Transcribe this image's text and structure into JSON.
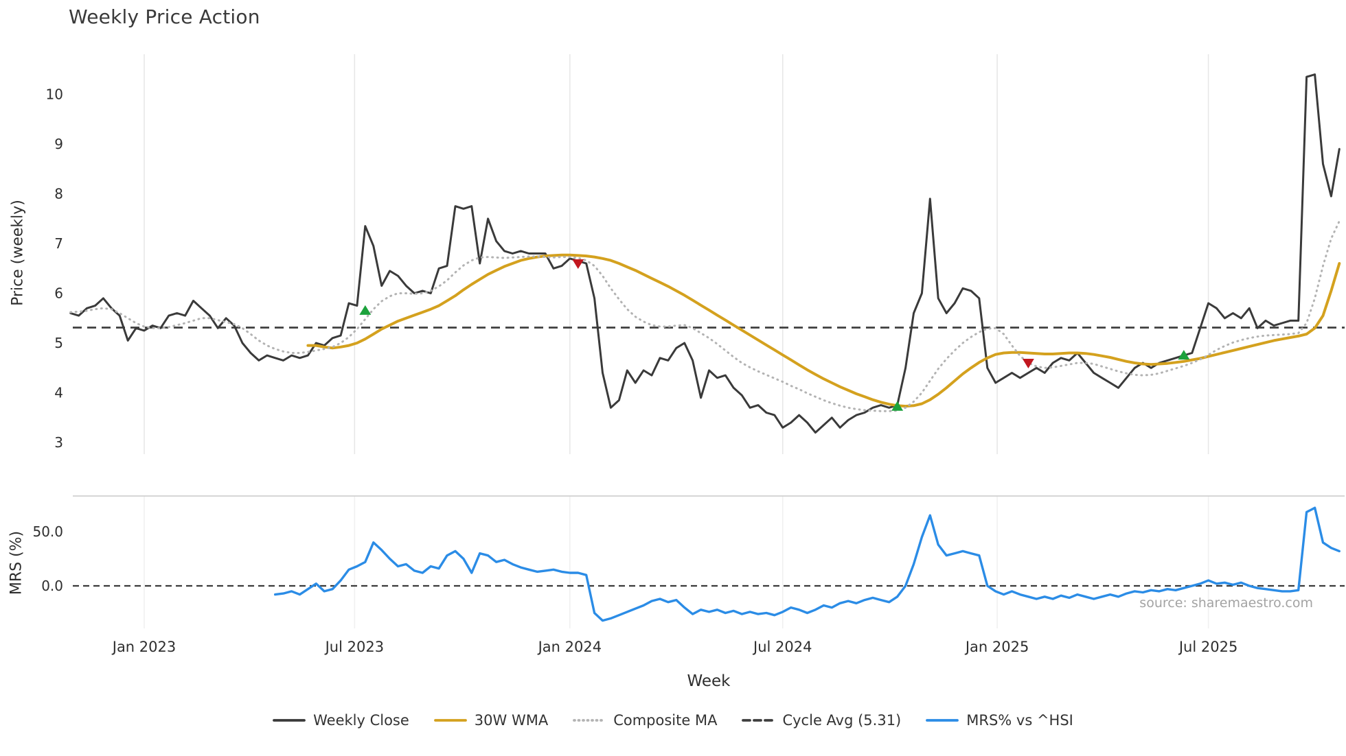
{
  "chart_data": {
    "type": "line",
    "title": "Weekly Price Action",
    "xlabel": "Week",
    "source": "source: sharemaestro.com",
    "grid": "vertical-only",
    "panels": [
      {
        "name": "price",
        "ylabel": "Price (weekly)",
        "ylim": [
          2.8,
          10.8
        ],
        "yticks": [
          {
            "v": 3,
            "label": "3"
          },
          {
            "v": 4,
            "label": "4"
          },
          {
            "v": 5,
            "label": "5"
          },
          {
            "v": 6,
            "label": "6"
          },
          {
            "v": 7,
            "label": "7"
          },
          {
            "v": 8,
            "label": "8"
          },
          {
            "v": 9,
            "label": "9"
          },
          {
            "v": 10,
            "label": "10"
          }
        ]
      },
      {
        "name": "mrs",
        "ylabel": "MRS (%)",
        "ylim": [
          -38,
          82
        ],
        "yticks": [
          {
            "v": 50,
            "label": "50.0"
          },
          {
            "v": 0,
            "label": "0.0"
          }
        ]
      }
    ],
    "x_axis": {
      "unit": "week_index",
      "n_weeks": 156,
      "tick_labels": [
        "Jan 2023",
        "Jul 2023",
        "Jan 2024",
        "Jul 2024",
        "Jan 2025",
        "Jul 2025"
      ],
      "tick_idx": [
        9,
        34.7,
        61,
        87,
        113.2,
        139
      ]
    },
    "cycle_avg": {
      "value": 5.31,
      "label": "Cycle Avg (5.31)",
      "color": "#3f3f3f",
      "style": "dashed"
    },
    "series": [
      {
        "name": "Weekly Close",
        "panel": "price",
        "color": "#3a3a3a",
        "style": "solid",
        "width": 3.0,
        "values": [
          5.6,
          5.55,
          5.7,
          5.75,
          5.9,
          5.7,
          5.55,
          5.05,
          5.3,
          5.25,
          5.35,
          5.3,
          5.55,
          5.6,
          5.55,
          5.85,
          5.7,
          5.55,
          5.3,
          5.5,
          5.35,
          5.0,
          4.8,
          4.65,
          4.75,
          4.7,
          4.65,
          4.75,
          4.7,
          4.75,
          5.0,
          4.95,
          5.1,
          5.15,
          5.8,
          5.75,
          7.35,
          6.95,
          6.15,
          6.45,
          6.35,
          6.15,
          6.0,
          6.05,
          6.0,
          6.5,
          6.55,
          7.75,
          7.7,
          7.75,
          6.6,
          7.5,
          7.05,
          6.85,
          6.8,
          6.85,
          6.8,
          6.8,
          6.8,
          6.5,
          6.55,
          6.7,
          6.65,
          6.6,
          5.9,
          4.4,
          3.7,
          3.85,
          4.45,
          4.2,
          4.45,
          4.35,
          4.7,
          4.65,
          4.9,
          5.0,
          4.65,
          3.9,
          4.45,
          4.3,
          4.35,
          4.1,
          3.95,
          3.7,
          3.75,
          3.6,
          3.55,
          3.3,
          3.4,
          3.55,
          3.4,
          3.2,
          3.35,
          3.5,
          3.3,
          3.45,
          3.55,
          3.6,
          3.7,
          3.75,
          3.7,
          3.75,
          4.5,
          5.6,
          6.0,
          7.9,
          5.9,
          5.6,
          5.8,
          6.1,
          6.05,
          5.9,
          4.5,
          4.2,
          4.3,
          4.4,
          4.3,
          4.4,
          4.5,
          4.4,
          4.6,
          4.7,
          4.65,
          4.8,
          4.6,
          4.4,
          4.3,
          4.2,
          4.1,
          4.3,
          4.5,
          4.6,
          4.5,
          4.6,
          4.65,
          4.7,
          4.75,
          4.8,
          5.3,
          5.8,
          5.7,
          5.5,
          5.6,
          5.5,
          5.7,
          5.3,
          5.45,
          5.35,
          5.4,
          5.45,
          5.45,
          10.35,
          10.4,
          8.6,
          7.95,
          8.9
        ]
      },
      {
        "name": "30W WMA",
        "panel": "price",
        "color": "#d4a11e",
        "style": "solid",
        "width": 4.0,
        "values": [
          null,
          null,
          null,
          null,
          null,
          null,
          null,
          null,
          null,
          null,
          null,
          null,
          null,
          null,
          null,
          null,
          null,
          null,
          null,
          null,
          null,
          null,
          null,
          null,
          null,
          null,
          null,
          null,
          null,
          4.95,
          4.95,
          4.92,
          4.9,
          4.92,
          4.95,
          5.0,
          5.08,
          5.18,
          5.28,
          5.36,
          5.44,
          5.5,
          5.56,
          5.62,
          5.68,
          5.75,
          5.85,
          5.95,
          6.07,
          6.18,
          6.28,
          6.38,
          6.46,
          6.54,
          6.6,
          6.66,
          6.7,
          6.73,
          6.75,
          6.76,
          6.77,
          6.77,
          6.76,
          6.75,
          6.73,
          6.7,
          6.66,
          6.6,
          6.53,
          6.46,
          6.38,
          6.3,
          6.22,
          6.14,
          6.05,
          5.96,
          5.86,
          5.76,
          5.66,
          5.56,
          5.46,
          5.36,
          5.26,
          5.16,
          5.06,
          4.96,
          4.86,
          4.76,
          4.66,
          4.56,
          4.46,
          4.37,
          4.28,
          4.2,
          4.12,
          4.05,
          3.98,
          3.92,
          3.86,
          3.81,
          3.77,
          3.74,
          3.73,
          3.74,
          3.78,
          3.86,
          3.97,
          4.1,
          4.24,
          4.38,
          4.5,
          4.61,
          4.7,
          4.77,
          4.8,
          4.81,
          4.81,
          4.8,
          4.79,
          4.78,
          4.78,
          4.79,
          4.8,
          4.8,
          4.79,
          4.77,
          4.74,
          4.71,
          4.67,
          4.63,
          4.6,
          4.58,
          4.57,
          4.58,
          4.59,
          4.61,
          4.63,
          4.66,
          4.69,
          4.73,
          4.77,
          4.81,
          4.85,
          4.89,
          4.93,
          4.97,
          5.01,
          5.05,
          5.08,
          5.11,
          5.14,
          5.18,
          5.3,
          5.55,
          6.05,
          6.6
        ]
      },
      {
        "name": "Composite MA",
        "panel": "price",
        "color": "#b3b3b3",
        "style": "dotted",
        "width": 3.0,
        "values": [
          5.62,
          5.63,
          5.65,
          5.68,
          5.7,
          5.68,
          5.6,
          5.5,
          5.4,
          5.33,
          5.3,
          5.3,
          5.32,
          5.36,
          5.4,
          5.45,
          5.5,
          5.5,
          5.46,
          5.42,
          5.38,
          5.3,
          5.18,
          5.05,
          4.95,
          4.88,
          4.83,
          4.8,
          4.8,
          4.82,
          4.85,
          4.88,
          4.92,
          5.0,
          5.12,
          5.28,
          5.48,
          5.68,
          5.84,
          5.94,
          6.0,
          6.0,
          5.99,
          6.0,
          6.05,
          6.14,
          6.26,
          6.42,
          6.56,
          6.66,
          6.72,
          6.73,
          6.72,
          6.71,
          6.72,
          6.73,
          6.74,
          6.74,
          6.73,
          6.72,
          6.73,
          6.73,
          6.71,
          6.66,
          6.55,
          6.35,
          6.1,
          5.88,
          5.68,
          5.53,
          5.43,
          5.36,
          5.33,
          5.33,
          5.35,
          5.36,
          5.3,
          5.2,
          5.1,
          4.98,
          4.85,
          4.72,
          4.6,
          4.51,
          4.43,
          4.36,
          4.29,
          4.22,
          4.14,
          4.07,
          3.99,
          3.92,
          3.85,
          3.79,
          3.74,
          3.7,
          3.67,
          3.65,
          3.64,
          3.63,
          3.63,
          3.64,
          3.7,
          3.82,
          4.0,
          4.24,
          4.48,
          4.68,
          4.85,
          5.0,
          5.12,
          5.22,
          5.29,
          5.3,
          5.18,
          4.95,
          4.74,
          4.6,
          4.53,
          4.5,
          4.51,
          4.54,
          4.57,
          4.6,
          4.6,
          4.58,
          4.53,
          4.48,
          4.43,
          4.39,
          4.36,
          4.35,
          4.36,
          4.39,
          4.44,
          4.49,
          4.54,
          4.6,
          4.67,
          4.76,
          4.86,
          4.94,
          5.01,
          5.06,
          5.1,
          5.13,
          5.15,
          5.16,
          5.17,
          5.18,
          5.2,
          5.4,
          5.9,
          6.55,
          7.1,
          7.45
        ]
      },
      {
        "name": "MRS% vs ^HSI",
        "panel": "mrs",
        "color": "#2b8ce6",
        "style": "solid",
        "width": 3.4,
        "values": [
          null,
          null,
          null,
          null,
          null,
          null,
          null,
          null,
          null,
          null,
          null,
          null,
          null,
          null,
          null,
          null,
          null,
          null,
          null,
          null,
          null,
          null,
          null,
          null,
          null,
          -8,
          -7,
          -5,
          -8,
          -3,
          2,
          -5,
          -3,
          5,
          15,
          18,
          22,
          40,
          33,
          25,
          18,
          20,
          14,
          12,
          18,
          16,
          28,
          32,
          25,
          12,
          30,
          28,
          22,
          24,
          20,
          17,
          15,
          13,
          14,
          15,
          13,
          12,
          12,
          10,
          -25,
          -32,
          -30,
          -27,
          -24,
          -21,
          -18,
          -14,
          -12,
          -15,
          -13,
          -20,
          -26,
          -22,
          -24,
          -22,
          -25,
          -23,
          -26,
          -24,
          -26,
          -25,
          -27,
          -24,
          -20,
          -22,
          -25,
          -22,
          -18,
          -20,
          -16,
          -14,
          -16,
          -13,
          -11,
          -13,
          -15,
          -10,
          0,
          20,
          45,
          65,
          38,
          28,
          30,
          32,
          30,
          28,
          0,
          -5,
          -8,
          -5,
          -8,
          -10,
          -12,
          -10,
          -12,
          -9,
          -11,
          -8,
          -10,
          -12,
          -10,
          -8,
          -10,
          -7,
          -5,
          -6,
          -4,
          -5,
          -3,
          -4,
          -2,
          0,
          2,
          5,
          2,
          3,
          1,
          3,
          0,
          -2,
          -3,
          -4,
          -5,
          -5,
          -4,
          68,
          72,
          40,
          35,
          32
        ]
      }
    ],
    "markers": {
      "buy_color": "#1ca23c",
      "sell_color": "#c2171f",
      "buy": [
        {
          "idx": 36,
          "price": 5.65
        },
        {
          "idx": 101,
          "price": 3.72
        },
        {
          "idx": 136,
          "price": 4.75
        }
      ],
      "sell": [
        {
          "idx": 62,
          "price": 6.6
        },
        {
          "idx": 117,
          "price": 4.6
        }
      ]
    },
    "legend": [
      {
        "label": "Weekly Close",
        "color": "#3a3a3a",
        "style": "solid"
      },
      {
        "label": "30W WMA",
        "color": "#d4a11e",
        "style": "solid"
      },
      {
        "label": "Composite MA",
        "color": "#b3b3b3",
        "style": "dotted"
      },
      {
        "label": "Cycle Avg (5.31)",
        "color": "#3f3f3f",
        "style": "dashed"
      },
      {
        "label": "MRS% vs ^HSI",
        "color": "#2b8ce6",
        "style": "solid"
      }
    ]
  }
}
